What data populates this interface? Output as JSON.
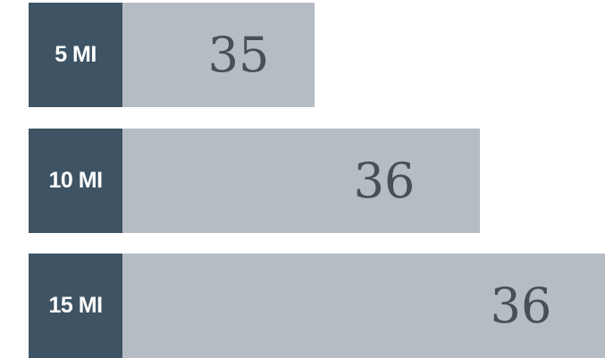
{
  "rows": [
    {
      "label": "5 MI",
      "value": "35"
    },
    {
      "label": "10 MI",
      "value": "36"
    },
    {
      "label": "15 MI",
      "value": "36"
    }
  ]
}
